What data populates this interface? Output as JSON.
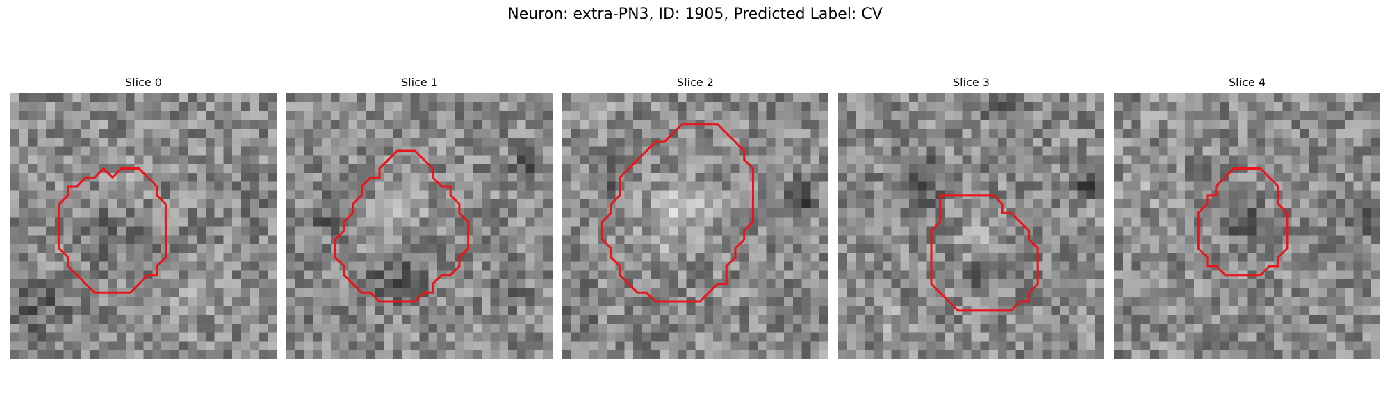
{
  "figure": {
    "title": "Neuron: extra-PN3, ID: 1905, Predicted Label: CV"
  },
  "colors": {
    "contour": "#e8161a",
    "background": "#ffffff"
  },
  "panels": [
    {
      "title": "Slice 0",
      "contour": [
        [
          11.5,
          9.5
        ],
        [
          12.5,
          8.5
        ],
        [
          14.5,
          8.5
        ],
        [
          15.5,
          9.5
        ],
        [
          16.5,
          10.5
        ],
        [
          16.5,
          11.5
        ],
        [
          17.5,
          12.5
        ],
        [
          17.5,
          18.5
        ],
        [
          16.5,
          19.5
        ],
        [
          16.5,
          20.5
        ],
        [
          15.5,
          20.5
        ],
        [
          14.5,
          21.5
        ],
        [
          13.5,
          22.5
        ],
        [
          9.5,
          22.5
        ],
        [
          8.5,
          21.5
        ],
        [
          7.5,
          20.5
        ],
        [
          6.5,
          19.5
        ],
        [
          6.5,
          18.5
        ],
        [
          5.5,
          17.5
        ],
        [
          5.5,
          12.5
        ],
        [
          6.5,
          11.5
        ],
        [
          6.5,
          10.5
        ],
        [
          7.5,
          10.5
        ],
        [
          8.5,
          9.5
        ],
        [
          9.5,
          9.5
        ],
        [
          10.5,
          8.5
        ]
      ],
      "blobs": [
        {
          "cx": 12,
          "cy": 16,
          "r": 6,
          "delta": -30
        },
        {
          "cx": 13,
          "cy": 10,
          "r": 4,
          "delta": 20
        },
        {
          "cx": 3,
          "cy": 24,
          "r": 5,
          "delta": -45
        },
        {
          "cx": 28,
          "cy": 12,
          "r": 3,
          "delta": -25
        },
        {
          "cx": 20,
          "cy": 24,
          "r": 5,
          "delta": 20
        },
        {
          "cx": 8,
          "cy": 3,
          "r": 4,
          "delta": 15
        }
      ]
    },
    {
      "title": "Slice 1",
      "contour": [
        [
          12.5,
          6.5
        ],
        [
          14.5,
          6.5
        ],
        [
          16.5,
          8.5
        ],
        [
          16.5,
          9.5
        ],
        [
          17.5,
          10.5
        ],
        [
          18.5,
          10.5
        ],
        [
          18.5,
          11.5
        ],
        [
          19.5,
          12.5
        ],
        [
          19.5,
          13.5
        ],
        [
          20.5,
          14.5
        ],
        [
          20.5,
          17.5
        ],
        [
          19.5,
          18.5
        ],
        [
          19.5,
          19.5
        ],
        [
          18.5,
          20.5
        ],
        [
          17.5,
          20.5
        ],
        [
          16.5,
          21.5
        ],
        [
          16.5,
          22.5
        ],
        [
          15.5,
          22.5
        ],
        [
          14.5,
          23.5
        ],
        [
          10.5,
          23.5
        ],
        [
          9.5,
          22.5
        ],
        [
          8.5,
          22.5
        ],
        [
          7.5,
          21.5
        ],
        [
          6.5,
          20.5
        ],
        [
          6.5,
          19.5
        ],
        [
          5.5,
          18.5
        ],
        [
          5.5,
          16.5
        ],
        [
          6.5,
          15.5
        ],
        [
          6.5,
          14.5
        ],
        [
          7.5,
          13.5
        ],
        [
          7.5,
          12.5
        ],
        [
          8.5,
          11.5
        ],
        [
          8.5,
          10.5
        ],
        [
          9.5,
          9.5
        ],
        [
          10.5,
          9.5
        ],
        [
          10.5,
          8.5
        ],
        [
          11.5,
          7.5
        ]
      ],
      "blobs": [
        {
          "cx": 13,
          "cy": 13,
          "r": 5,
          "delta": 25
        },
        {
          "cx": 12,
          "cy": 21,
          "r": 5,
          "delta": -45
        },
        {
          "cx": 5,
          "cy": 14,
          "r": 3,
          "delta": -50
        },
        {
          "cx": 27,
          "cy": 8,
          "r": 3,
          "delta": -45
        },
        {
          "cx": 25,
          "cy": 22,
          "r": 4,
          "delta": -20
        },
        {
          "cx": 3,
          "cy": 26,
          "r": 3,
          "delta": -20
        }
      ]
    },
    {
      "title": "Slice 2",
      "contour": [
        [
          11.5,
          5.5
        ],
        [
          12.5,
          4.5
        ],
        [
          13.5,
          3.5
        ],
        [
          17.5,
          3.5
        ],
        [
          18.5,
          4.5
        ],
        [
          19.5,
          5.5
        ],
        [
          20.5,
          6.5
        ],
        [
          20.5,
          7.5
        ],
        [
          21.5,
          8.5
        ],
        [
          21.5,
          14.5
        ],
        [
          20.5,
          15.5
        ],
        [
          20.5,
          16.5
        ],
        [
          19.5,
          17.5
        ],
        [
          19.5,
          18.5
        ],
        [
          18.5,
          19.5
        ],
        [
          18.5,
          21.5
        ],
        [
          17.5,
          21.5
        ],
        [
          16.5,
          22.5
        ],
        [
          15.5,
          23.5
        ],
        [
          10.5,
          23.5
        ],
        [
          9.5,
          22.5
        ],
        [
          8.5,
          22.5
        ],
        [
          7.5,
          21.5
        ],
        [
          6.5,
          20.5
        ],
        [
          6.5,
          19.5
        ],
        [
          5.5,
          18.5
        ],
        [
          5.5,
          17.5
        ],
        [
          4.5,
          16.5
        ],
        [
          4.5,
          14.5
        ],
        [
          5.5,
          13.5
        ],
        [
          5.5,
          12.5
        ],
        [
          6.5,
          11.5
        ],
        [
          6.5,
          9.5
        ],
        [
          7.5,
          8.5
        ],
        [
          8.5,
          7.5
        ],
        [
          9.5,
          6.5
        ],
        [
          10.5,
          5.5
        ]
      ],
      "blobs": [
        {
          "cx": 13,
          "cy": 14,
          "r": 6,
          "delta": 55
        },
        {
          "cx": 6,
          "cy": 9,
          "r": 3,
          "delta": -45
        },
        {
          "cx": 27,
          "cy": 12,
          "r": 3,
          "delta": -75
        },
        {
          "cx": 2,
          "cy": 24,
          "r": 3,
          "delta": -35
        },
        {
          "cx": 24,
          "cy": 24,
          "r": 4,
          "delta": -10
        },
        {
          "cx": 3,
          "cy": 2,
          "r": 4,
          "delta": 25
        }
      ]
    },
    {
      "title": "Slice 3",
      "contour": [
        [
          11.5,
          11.5
        ],
        [
          17.5,
          11.5
        ],
        [
          18.5,
          12.5
        ],
        [
          18.5,
          13.5
        ],
        [
          19.5,
          13.5
        ],
        [
          20.5,
          14.5
        ],
        [
          21.5,
          15.5
        ],
        [
          21.5,
          16.5
        ],
        [
          22.5,
          17.5
        ],
        [
          22.5,
          21.5
        ],
        [
          21.5,
          22.5
        ],
        [
          21.5,
          23.5
        ],
        [
          20.5,
          23.5
        ],
        [
          19.5,
          24.5
        ],
        [
          13.5,
          24.5
        ],
        [
          12.5,
          23.5
        ],
        [
          11.5,
          22.5
        ],
        [
          10.5,
          21.5
        ],
        [
          10.5,
          15.5
        ],
        [
          11.5,
          14.5
        ],
        [
          11.5,
          13.5
        ]
      ],
      "blobs": [
        {
          "cx": 16,
          "cy": 16,
          "r": 4,
          "delta": 30
        },
        {
          "cx": 16,
          "cy": 21,
          "r": 3,
          "delta": -35
        },
        {
          "cx": 9,
          "cy": 10,
          "r": 5,
          "delta": -40
        },
        {
          "cx": 28,
          "cy": 10,
          "r": 3,
          "delta": -60
        },
        {
          "cx": 6,
          "cy": 26,
          "r": 4,
          "delta": 20
        },
        {
          "cx": 18,
          "cy": 1,
          "r": 3,
          "delta": -45
        }
      ]
    },
    {
      "title": "Slice 4",
      "contour": [
        [
          11.5,
          10.5
        ],
        [
          12.5,
          9.5
        ],
        [
          13.5,
          8.5
        ],
        [
          16.5,
          8.5
        ],
        [
          17.5,
          9.5
        ],
        [
          18.5,
          10.5
        ],
        [
          18.5,
          12.5
        ],
        [
          19.5,
          13.5
        ],
        [
          19.5,
          17.5
        ],
        [
          18.5,
          18.5
        ],
        [
          18.5,
          19.5
        ],
        [
          17.5,
          19.5
        ],
        [
          16.5,
          20.5
        ],
        [
          12.5,
          20.5
        ],
        [
          11.5,
          19.5
        ],
        [
          10.5,
          19.5
        ],
        [
          10.5,
          18.5
        ],
        [
          9.5,
          17.5
        ],
        [
          9.5,
          13.5
        ],
        [
          10.5,
          12.5
        ],
        [
          10.5,
          11.5
        ],
        [
          11.5,
          11.5
        ]
      ],
      "blobs": [
        {
          "cx": 14.5,
          "cy": 14,
          "r": 4,
          "delta": -50
        },
        {
          "cx": 28,
          "cy": 14,
          "r": 3,
          "delta": -75
        },
        {
          "cx": 4,
          "cy": 10,
          "r": 4,
          "delta": 30
        },
        {
          "cx": 5,
          "cy": 3,
          "r": 3,
          "delta": 15
        },
        {
          "cx": 22,
          "cy": 26,
          "r": 3,
          "delta": -10
        }
      ]
    }
  ]
}
